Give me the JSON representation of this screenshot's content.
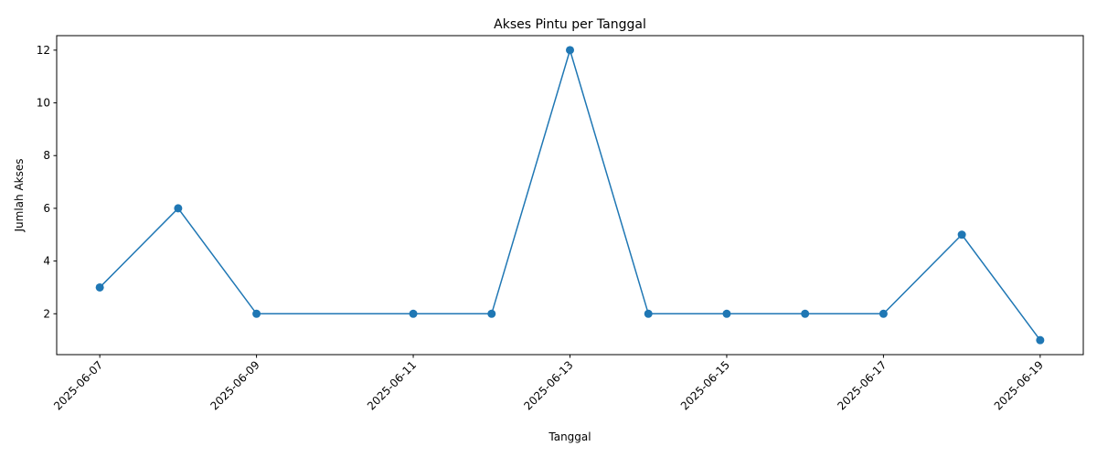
{
  "chart_data": {
    "type": "line",
    "title": "Akses Pintu per Tanggal",
    "xlabel": "Tanggal",
    "ylabel": "Jumlah Akses",
    "x": [
      "2025-06-07",
      "2025-06-08",
      "2025-06-09",
      "2025-06-11",
      "2025-06-12",
      "2025-06-13",
      "2025-06-14",
      "2025-06-15",
      "2025-06-16",
      "2025-06-17",
      "2025-06-18",
      "2025-06-19"
    ],
    "y": [
      3,
      6,
      2,
      2,
      2,
      12,
      2,
      2,
      2,
      2,
      5,
      1
    ],
    "x_ticks": [
      "2025-06-07",
      "2025-06-09",
      "2025-06-11",
      "2025-06-13",
      "2025-06-15",
      "2025-06-17",
      "2025-06-19"
    ],
    "y_ticks": [
      2,
      4,
      6,
      8,
      10,
      12
    ],
    "ylim": [
      0.45,
      12.55
    ],
    "xlim": [
      "2025-06-06T10:48",
      "2025-06-19T13:12"
    ],
    "grid": false,
    "colors": {
      "line": "#1f77b4",
      "marker": "#1f77b4"
    }
  }
}
